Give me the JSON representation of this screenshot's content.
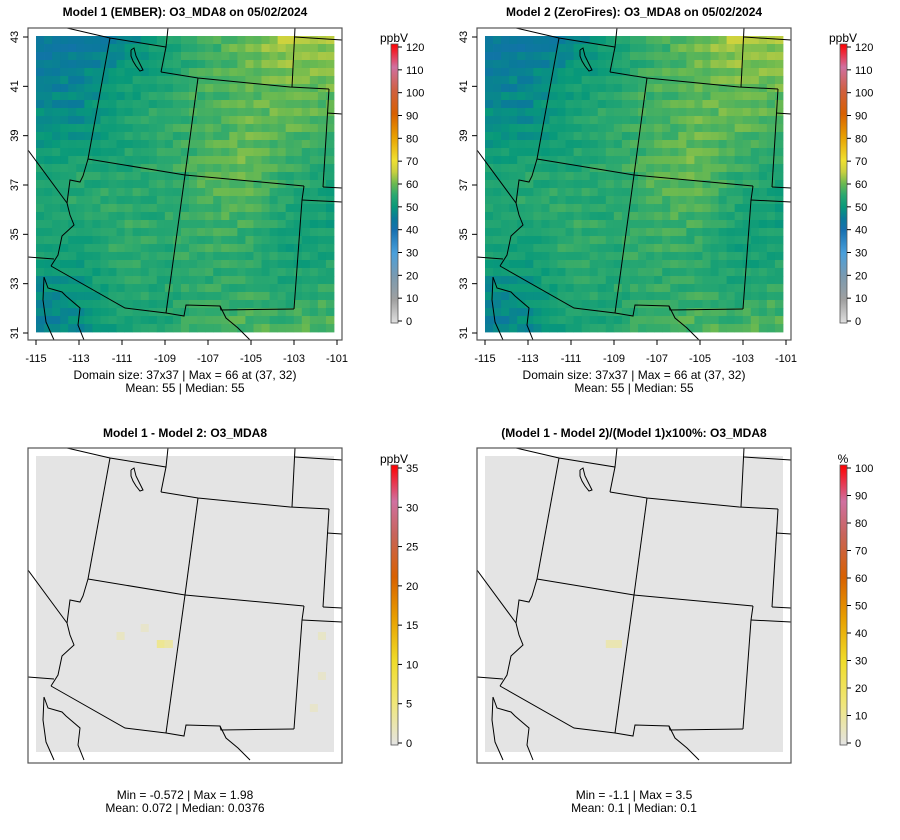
{
  "panels": [
    {
      "title": "Model 1 (EMBER): O3_MDA8 on 05/02/2024",
      "stats_line1": "Domain size: 37x37 | Max = 66 at (37, 32)",
      "stats_line2": "Mean: 55 |  Median: 55",
      "units": "ppbV",
      "colorbar_ticks": [
        "0",
        "10",
        "20",
        "30",
        "40",
        "50",
        "60",
        "70",
        "80",
        "90",
        "100",
        "110",
        "120"
      ],
      "colorbar_max": 120,
      "axes": true
    },
    {
      "title": "Model 2 (ZeroFires): O3_MDA8 on 05/02/2024",
      "stats_line1": "Domain size: 37x37 | Max = 66 at (37, 32)",
      "stats_line2": "Mean: 55 |  Median: 55",
      "units": "ppbV",
      "colorbar_ticks": [
        "0",
        "10",
        "20",
        "30",
        "40",
        "50",
        "60",
        "70",
        "80",
        "90",
        "100",
        "110",
        "120"
      ],
      "colorbar_max": 120,
      "axes": true
    },
    {
      "title": "Model 1 - Model 2: O3_MDA8",
      "stats_line1": "Min = -0.572 | Max = 1.98",
      "stats_line2": "Mean: 0.072 |  Median: 0.0376",
      "units": "ppbV",
      "colorbar_ticks": [
        "0",
        "5",
        "10",
        "15",
        "20",
        "25",
        "30",
        "35"
      ],
      "colorbar_max": 35,
      "axes": false
    },
    {
      "title": "(Model 1 - Model 2)/(Model 1)x100%: O3_MDA8",
      "stats_line1": "Min = -1.1 | Max = 3.5",
      "stats_line2": "Mean: 0.1 |  Median: 0.1",
      "units": "%",
      "colorbar_ticks": [
        "0",
        "10",
        "20",
        "30",
        "40",
        "50",
        "60",
        "70",
        "80",
        "90",
        "100"
      ],
      "colorbar_max": 100,
      "axes": false
    }
  ],
  "chart_data": {
    "type": "heatmap",
    "x_ticks": [
      "-115",
      "-113",
      "-111",
      "-109",
      "-107",
      "-105",
      "-103",
      "-101"
    ],
    "y_ticks": [
      "31",
      "33",
      "35",
      "37",
      "39",
      "41",
      "43"
    ],
    "xlim": [
      -115,
      -101
    ],
    "ylim": [
      31,
      43
    ],
    "grid_size": [
      37,
      37
    ],
    "model_coarse_field_north_to_south": [
      [
        44,
        43,
        47,
        52,
        56,
        60,
        64,
        62
      ],
      [
        46,
        47,
        51,
        53,
        57,
        58,
        60,
        60
      ],
      [
        48,
        48,
        53,
        55,
        57,
        59,
        59,
        57
      ],
      [
        52,
        53,
        53,
        55,
        58,
        60,
        56,
        54
      ],
      [
        53,
        55,
        55,
        54,
        57,
        58,
        53,
        52
      ],
      [
        53,
        52,
        56,
        54,
        56,
        55,
        52,
        52
      ],
      [
        48,
        50,
        54,
        54,
        55,
        55,
        53,
        55
      ],
      [
        45,
        48,
        53,
        53,
        57,
        58,
        57,
        58
      ]
    ],
    "diff_background_value": 0,
    "diff_patches": [
      {
        "col": 15,
        "row": 23,
        "value": 1.98
      },
      {
        "col": 16,
        "row": 23,
        "value": 1.5
      },
      {
        "col": 10,
        "row": 22,
        "value": 0.8
      },
      {
        "col": 13,
        "row": 21,
        "value": 0.6
      },
      {
        "col": 35,
        "row": 22,
        "value": 0.7
      },
      {
        "col": 35,
        "row": 27,
        "value": 0.6
      },
      {
        "col": 34,
        "row": 31,
        "value": 0.6
      }
    ],
    "pct_patches": [
      {
        "col": 15,
        "row": 23,
        "value": 3.5
      }
    ]
  }
}
